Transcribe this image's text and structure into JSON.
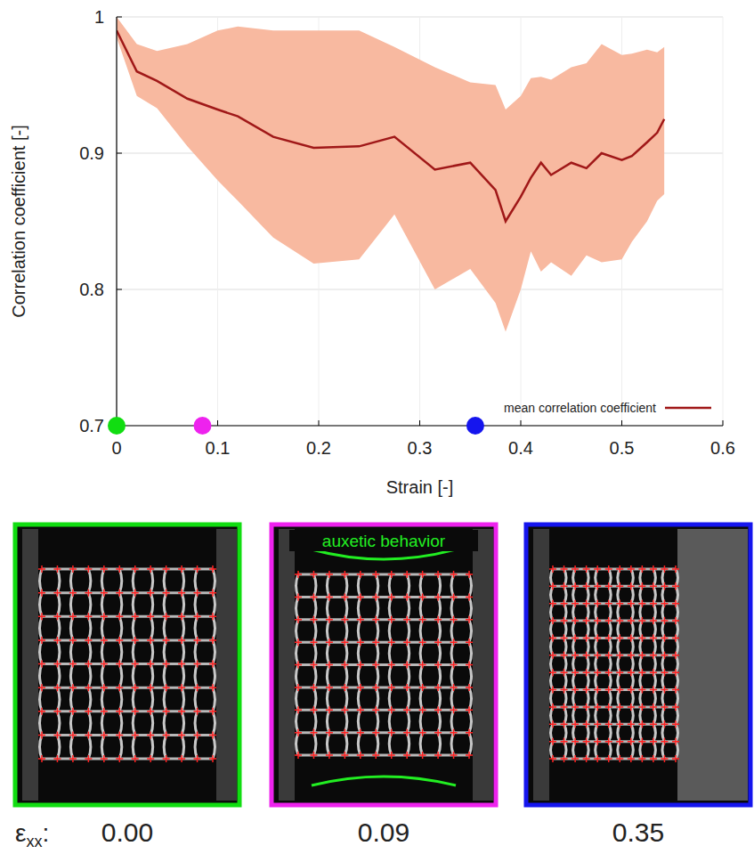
{
  "chart_data": {
    "type": "line",
    "x_label": "Strain [-]",
    "y_label": "Correlation coefficient [-]",
    "xlim": [
      0,
      0.6
    ],
    "ylim": [
      0.7,
      1
    ],
    "xticks": [
      0,
      0.1,
      0.2,
      0.3,
      0.4,
      0.5,
      0.6
    ],
    "yticks": [
      0.7,
      0.8,
      0.9,
      1
    ],
    "grid": true,
    "legend": "bottom-right",
    "x": [
      0,
      0.02,
      0.04,
      0.07,
      0.1,
      0.12,
      0.155,
      0.195,
      0.24,
      0.275,
      0.315,
      0.35,
      0.375,
      0.385,
      0.4,
      0.41,
      0.42,
      0.43,
      0.45,
      0.465,
      0.48,
      0.5,
      0.51,
      0.525,
      0.535,
      0.542
    ],
    "series": [
      {
        "name": "mean correlation coefficient",
        "color": "#a01818",
        "values": [
          0.99,
          0.96,
          0.953,
          0.94,
          0.932,
          0.927,
          0.912,
          0.904,
          0.905,
          0.912,
          0.888,
          0.893,
          0.873,
          0.85,
          0.868,
          0.882,
          0.893,
          0.884,
          0.893,
          0.889,
          0.9,
          0.895,
          0.898,
          0.908,
          0.915,
          0.925
        ],
        "upper": [
          1.0,
          0.98,
          0.975,
          0.98,
          0.99,
          0.993,
          0.99,
          0.99,
          0.99,
          0.978,
          0.963,
          0.952,
          0.95,
          0.932,
          0.942,
          0.955,
          0.956,
          0.954,
          0.963,
          0.966,
          0.98,
          0.972,
          0.973,
          0.976,
          0.974,
          0.978
        ],
        "lower": [
          0.985,
          0.942,
          0.933,
          0.905,
          0.88,
          0.865,
          0.838,
          0.819,
          0.822,
          0.855,
          0.8,
          0.815,
          0.79,
          0.769,
          0.8,
          0.828,
          0.813,
          0.82,
          0.81,
          0.825,
          0.82,
          0.822,
          0.835,
          0.85,
          0.865,
          0.87
        ]
      }
    ],
    "highlight_points": {
      "x": [
        0,
        0.085,
        0.355
      ],
      "colors": [
        "#11dd11",
        "#ee22ee",
        "#1515ee"
      ]
    }
  },
  "panels": {
    "row_label": "εxx:",
    "items": [
      {
        "color": "#11dd11",
        "label": "0.00"
      },
      {
        "color": "#ee22ee",
        "label": "0.09",
        "annotation": "auxetic behavior"
      },
      {
        "color": "#1515ee",
        "label": "0.35"
      }
    ]
  }
}
